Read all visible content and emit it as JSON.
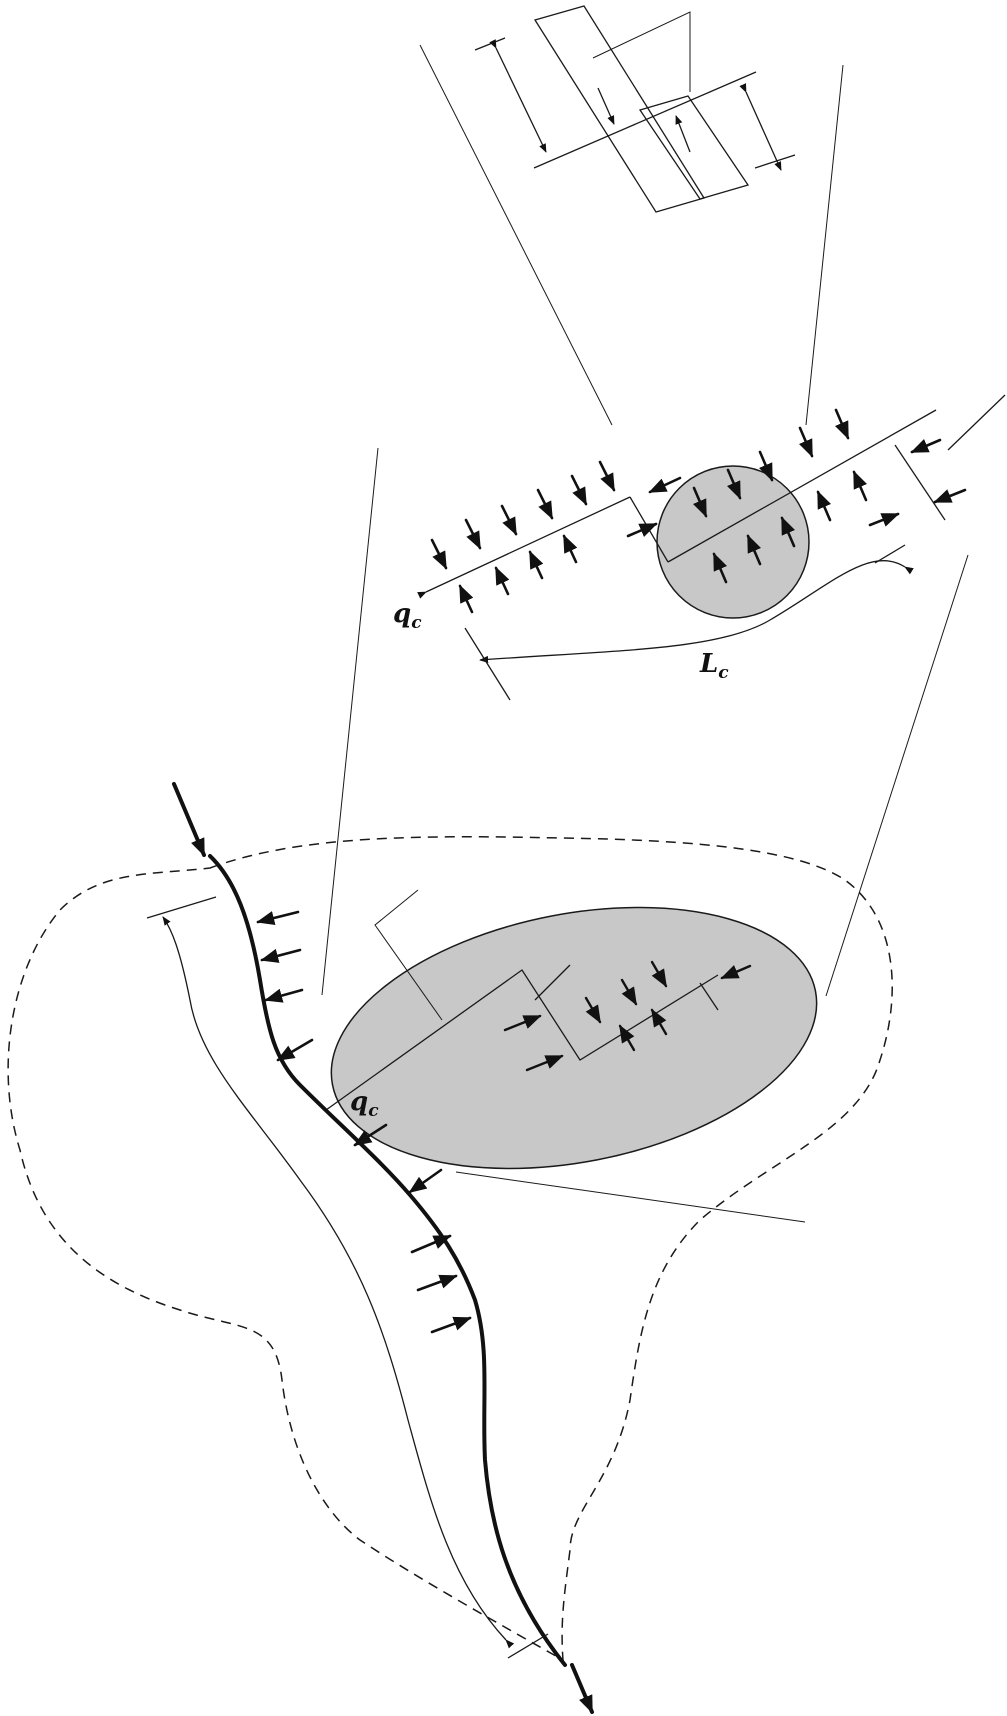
{
  "labels": {
    "flux_symbol": "q",
    "flux_subscript": "c",
    "length_symbol": "L",
    "length_subscript": "c"
  },
  "colors": {
    "ink": "#111111",
    "grain_fill": "#c8c8c8",
    "background": "#ffffff"
  }
}
